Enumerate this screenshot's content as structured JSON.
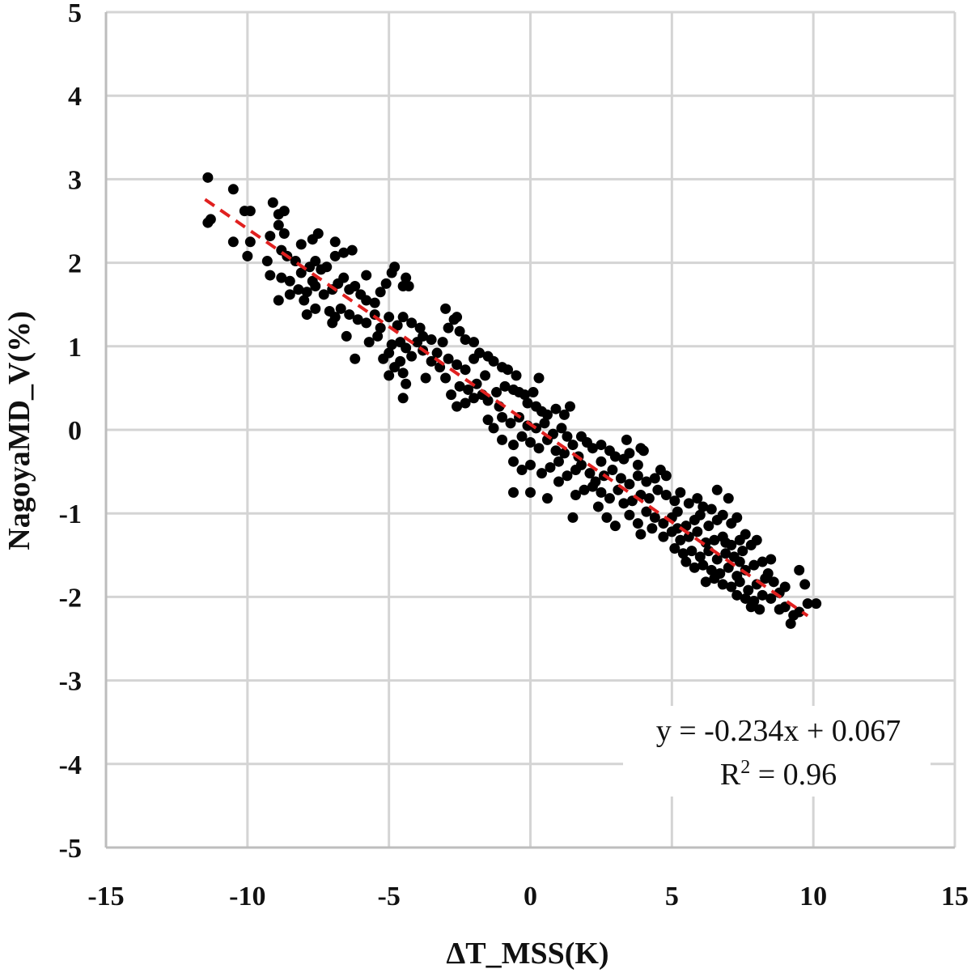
{
  "chart_data": {
    "type": "scatter",
    "title": "",
    "xlabel": "ΔT_MSS(K)",
    "ylabel": "NagoyaMD_V(%)",
    "xlim": [
      -15,
      15
    ],
    "ylim": [
      -5,
      5
    ],
    "x_ticks": [
      "-15",
      "-10",
      "-5",
      "0",
      "5",
      "10",
      "15"
    ],
    "y_ticks": [
      "5",
      "4",
      "3",
      "2",
      "1",
      "0",
      "-1",
      "-2",
      "-3",
      "-4",
      "-5"
    ],
    "grid": true,
    "marker_color": "#000000",
    "trendline": {
      "style": "dashed",
      "color": "#e0201f",
      "slope": -0.234,
      "intercept": 0.067,
      "x_range": [
        -11.5,
        9.8
      ]
    },
    "annotation": {
      "equation": "y = -0.234x + 0.067",
      "r2_prefix": "R",
      "r2_sup": "2",
      "r2_suffix": " = 0.96"
    },
    "points": [
      [
        -11.4,
        3.02
      ],
      [
        -11.3,
        2.52
      ],
      [
        -11.4,
        2.48
      ],
      [
        -10.5,
        2.88
      ],
      [
        -10.1,
        2.62
      ],
      [
        -9.9,
        2.62
      ],
      [
        -10.5,
        2.25
      ],
      [
        -10.0,
        2.08
      ],
      [
        -9.9,
        2.25
      ],
      [
        -9.1,
        2.72
      ],
      [
        -8.9,
        2.58
      ],
      [
        -8.7,
        2.62
      ],
      [
        -8.9,
        2.45
      ],
      [
        -8.7,
        2.35
      ],
      [
        -9.2,
        2.32
      ],
      [
        -8.8,
        2.15
      ],
      [
        -9.3,
        2.02
      ],
      [
        -8.6,
        2.08
      ],
      [
        -8.3,
        2.02
      ],
      [
        -8.1,
        2.22
      ],
      [
        -7.5,
        2.35
      ],
      [
        -7.7,
        2.28
      ],
      [
        -9.2,
        1.85
      ],
      [
        -8.8,
        1.82
      ],
      [
        -8.5,
        1.78
      ],
      [
        -8.1,
        1.88
      ],
      [
        -7.8,
        1.95
      ],
      [
        -7.6,
        2.02
      ],
      [
        -7.4,
        1.92
      ],
      [
        -7.2,
        1.95
      ],
      [
        -6.9,
        2.08
      ],
      [
        -6.6,
        2.12
      ],
      [
        -6.3,
        2.15
      ],
      [
        -6.6,
        1.82
      ],
      [
        -7.9,
        1.65
      ],
      [
        -7.6,
        1.72
      ],
      [
        -7.3,
        1.62
      ],
      [
        -7.0,
        1.68
      ],
      [
        -6.8,
        1.75
      ],
      [
        -6.4,
        1.68
      ],
      [
        -6.2,
        1.72
      ],
      [
        -6.0,
        1.62
      ],
      [
        -5.8,
        1.55
      ],
      [
        -5.5,
        1.52
      ],
      [
        -5.3,
        1.65
      ],
      [
        -5.1,
        1.75
      ],
      [
        -4.9,
        1.88
      ],
      [
        -4.8,
        1.95
      ],
      [
        -4.5,
        1.72
      ],
      [
        -4.3,
        1.72
      ],
      [
        -4.4,
        1.82
      ],
      [
        -8.9,
        1.55
      ],
      [
        -8.5,
        1.62
      ],
      [
        -8.0,
        1.55
      ],
      [
        -7.9,
        1.38
      ],
      [
        -7.6,
        1.45
      ],
      [
        -7.1,
        1.42
      ],
      [
        -6.9,
        1.35
      ],
      [
        -6.7,
        1.45
      ],
      [
        -6.4,
        1.38
      ],
      [
        -6.1,
        1.32
      ],
      [
        -5.8,
        1.28
      ],
      [
        -5.5,
        1.38
      ],
      [
        -5.3,
        1.22
      ],
      [
        -5.0,
        1.35
      ],
      [
        -4.7,
        1.25
      ],
      [
        -4.5,
        1.35
      ],
      [
        -4.2,
        1.28
      ],
      [
        -3.9,
        1.22
      ],
      [
        -3.8,
        1.12
      ],
      [
        -4.0,
        1.05
      ],
      [
        -4.4,
        0.98
      ],
      [
        -4.6,
        1.05
      ],
      [
        -4.9,
        1.02
      ],
      [
        -5.0,
        0.92
      ],
      [
        -5.2,
        0.85
      ],
      [
        -4.8,
        0.75
      ],
      [
        -4.5,
        0.68
      ],
      [
        -4.6,
        0.82
      ],
      [
        -4.2,
        0.88
      ],
      [
        -4.4,
        0.55
      ],
      [
        -5.0,
        0.65
      ],
      [
        -4.5,
        0.38
      ],
      [
        -3.8,
        0.95
      ],
      [
        -3.5,
        1.08
      ],
      [
        -3.3,
        0.92
      ],
      [
        -3.1,
        1.05
      ],
      [
        -2.9,
        1.22
      ],
      [
        -2.7,
        1.32
      ],
      [
        -2.6,
        1.35
      ],
      [
        -2.5,
        1.18
      ],
      [
        -2.3,
        1.08
      ],
      [
        -2.9,
        0.85
      ],
      [
        -3.2,
        0.75
      ],
      [
        -3.0,
        0.62
      ],
      [
        -2.6,
        0.78
      ],
      [
        -2.3,
        0.72
      ],
      [
        -2.0,
        0.85
      ],
      [
        -1.8,
        0.92
      ],
      [
        -1.5,
        0.88
      ],
      [
        -1.3,
        0.82
      ],
      [
        -1.0,
        0.75
      ],
      [
        -0.8,
        0.72
      ],
      [
        -1.6,
        0.65
      ],
      [
        -1.9,
        0.55
      ],
      [
        -2.2,
        0.48
      ],
      [
        -2.5,
        0.52
      ],
      [
        -2.8,
        0.42
      ],
      [
        -2.6,
        0.28
      ],
      [
        -2.3,
        0.32
      ],
      [
        -2.0,
        0.38
      ],
      [
        -1.7,
        0.42
      ],
      [
        -1.5,
        0.35
      ],
      [
        -1.2,
        0.45
      ],
      [
        -0.9,
        0.52
      ],
      [
        -0.6,
        0.48
      ],
      [
        -0.4,
        0.45
      ],
      [
        -0.2,
        0.42
      ],
      [
        0.1,
        0.45
      ],
      [
        0.3,
        0.62
      ],
      [
        -0.1,
        0.32
      ],
      [
        0.2,
        0.28
      ],
      [
        0.4,
        0.22
      ],
      [
        0.6,
        0.18
      ],
      [
        0.9,
        0.25
      ],
      [
        1.2,
        0.18
      ],
      [
        1.4,
        0.28
      ],
      [
        -1.0,
        0.15
      ],
      [
        -0.7,
        0.08
      ],
      [
        -0.4,
        0.15
      ],
      [
        -0.1,
        0.05
      ],
      [
        0.2,
        0.02
      ],
      [
        0.5,
        0.08
      ],
      [
        0.8,
        -0.05
      ],
      [
        1.1,
        0.02
      ],
      [
        1.3,
        -0.08
      ],
      [
        -1.3,
        0.02
      ],
      [
        -1.0,
        -0.12
      ],
      [
        -0.6,
        -0.18
      ],
      [
        -0.3,
        -0.08
      ],
      [
        0.0,
        -0.15
      ],
      [
        0.3,
        -0.22
      ],
      [
        0.6,
        -0.12
      ],
      [
        0.9,
        -0.25
      ],
      [
        1.2,
        -0.28
      ],
      [
        1.5,
        -0.18
      ],
      [
        1.8,
        -0.08
      ],
      [
        2.0,
        -0.15
      ],
      [
        2.2,
        -0.22
      ],
      [
        2.5,
        -0.18
      ],
      [
        2.8,
        -0.25
      ],
      [
        3.0,
        -0.32
      ],
      [
        3.3,
        -0.35
      ],
      [
        3.5,
        -0.28
      ],
      [
        3.8,
        -0.42
      ],
      [
        3.9,
        -0.22
      ],
      [
        -0.6,
        -0.38
      ],
      [
        -0.3,
        -0.48
      ],
      [
        0.0,
        -0.42
      ],
      [
        0.4,
        -0.52
      ],
      [
        0.7,
        -0.45
      ],
      [
        1.0,
        -0.38
      ],
      [
        1.3,
        -0.55
      ],
      [
        1.6,
        -0.48
      ],
      [
        1.8,
        -0.42
      ],
      [
        2.1,
        -0.52
      ],
      [
        2.3,
        -0.62
      ],
      [
        2.6,
        -0.55
      ],
      [
        2.9,
        -0.48
      ],
      [
        3.2,
        -0.58
      ],
      [
        3.5,
        -0.65
      ],
      [
        3.8,
        -0.55
      ],
      [
        4.1,
        -0.62
      ],
      [
        4.4,
        -0.58
      ],
      [
        4.6,
        -0.48
      ],
      [
        4.8,
        -0.55
      ],
      [
        -0.6,
        -0.75
      ],
      [
        0.0,
        -0.75
      ],
      [
        0.6,
        -0.82
      ],
      [
        1.6,
        -0.78
      ],
      [
        1.9,
        -0.72
      ],
      [
        2.2,
        -0.68
      ],
      [
        2.5,
        -0.75
      ],
      [
        2.8,
        -0.82
      ],
      [
        3.1,
        -0.72
      ],
      [
        3.3,
        -0.88
      ],
      [
        3.6,
        -0.85
      ],
      [
        3.9,
        -0.78
      ],
      [
        4.2,
        -0.82
      ],
      [
        4.5,
        -0.72
      ],
      [
        4.8,
        -0.78
      ],
      [
        5.1,
        -0.85
      ],
      [
        5.3,
        -0.75
      ],
      [
        5.6,
        -0.88
      ],
      [
        5.9,
        -0.82
      ],
      [
        6.1,
        -0.92
      ],
      [
        6.4,
        -0.95
      ],
      [
        6.6,
        -0.72
      ],
      [
        7.0,
        -0.82
      ],
      [
        3.5,
        -1.02
      ],
      [
        3.8,
        -1.12
      ],
      [
        4.1,
        -0.98
      ],
      [
        4.4,
        -1.05
      ],
      [
        4.7,
        -1.12
      ],
      [
        5.0,
        -1.05
      ],
      [
        5.2,
        -0.98
      ],
      [
        5.5,
        -1.15
      ],
      [
        5.8,
        -1.08
      ],
      [
        6.0,
        -1.02
      ],
      [
        6.3,
        -1.15
      ],
      [
        6.6,
        -1.08
      ],
      [
        6.8,
        -1.02
      ],
      [
        7.1,
        -1.12
      ],
      [
        7.3,
        -1.05
      ],
      [
        3.9,
        -1.25
      ],
      [
        4.3,
        -1.18
      ],
      [
        4.7,
        -1.28
      ],
      [
        5.0,
        -1.22
      ],
      [
        5.3,
        -1.32
      ],
      [
        5.6,
        -1.28
      ],
      [
        5.9,
        -1.22
      ],
      [
        6.2,
        -1.35
      ],
      [
        6.5,
        -1.32
      ],
      [
        6.8,
        -1.28
      ],
      [
        7.1,
        -1.38
      ],
      [
        7.4,
        -1.32
      ],
      [
        7.6,
        -1.25
      ],
      [
        5.1,
        -1.42
      ],
      [
        5.4,
        -1.48
      ],
      [
        5.7,
        -1.45
      ],
      [
        6.0,
        -1.52
      ],
      [
        6.3,
        -1.45
      ],
      [
        6.6,
        -1.55
      ],
      [
        6.9,
        -1.48
      ],
      [
        7.2,
        -1.52
      ],
      [
        7.5,
        -1.45
      ],
      [
        7.8,
        -1.38
      ],
      [
        8.0,
        -1.32
      ],
      [
        5.5,
        -1.58
      ],
      [
        5.8,
        -1.65
      ],
      [
        6.1,
        -1.62
      ],
      [
        6.4,
        -1.68
      ],
      [
        6.7,
        -1.72
      ],
      [
        7.0,
        -1.65
      ],
      [
        7.3,
        -1.75
      ],
      [
        7.6,
        -1.68
      ],
      [
        7.9,
        -1.62
      ],
      [
        8.2,
        -1.58
      ],
      [
        8.5,
        -1.55
      ],
      [
        6.2,
        -1.82
      ],
      [
        6.5,
        -1.78
      ],
      [
        6.8,
        -1.85
      ],
      [
        7.1,
        -1.88
      ],
      [
        7.4,
        -1.82
      ],
      [
        7.7,
        -1.92
      ],
      [
        8.0,
        -1.85
      ],
      [
        8.3,
        -1.78
      ],
      [
        8.6,
        -1.82
      ],
      [
        7.3,
        -1.98
      ],
      [
        7.6,
        -2.02
      ],
      [
        7.9,
        -2.05
      ],
      [
        8.2,
        -1.98
      ],
      [
        8.5,
        -2.02
      ],
      [
        7.8,
        -2.12
      ],
      [
        8.1,
        -2.15
      ],
      [
        8.8,
        -1.95
      ],
      [
        9.0,
        -2.12
      ],
      [
        9.3,
        -2.22
      ],
      [
        9.5,
        -2.18
      ],
      [
        9.8,
        -2.08
      ],
      [
        10.1,
        -2.08
      ],
      [
        9.7,
        -1.85
      ],
      [
        9.5,
        -1.68
      ],
      [
        9.2,
        -2.32
      ],
      [
        8.8,
        -2.15
      ],
      [
        -6.2,
        0.85
      ],
      [
        -5.7,
        1.05
      ],
      [
        -5.4,
        1.12
      ],
      [
        -6.5,
        1.12
      ],
      [
        -7.0,
        1.28
      ],
      [
        -7.7,
        1.78
      ],
      [
        -8.2,
        1.68
      ],
      [
        -3.5,
        0.82
      ],
      [
        -3.7,
        0.62
      ],
      [
        -1.5,
        0.12
      ],
      [
        -1.1,
        0.28
      ],
      [
        1.0,
        -0.62
      ],
      [
        1.7,
        -0.32
      ],
      [
        2.4,
        -0.92
      ],
      [
        2.7,
        -1.05
      ],
      [
        3.0,
        -1.15
      ],
      [
        4.0,
        -0.25
      ],
      [
        8.4,
        -1.72
      ],
      [
        9.0,
        -1.88
      ],
      [
        -2.0,
        1.05
      ],
      [
        -0.5,
        0.65
      ],
      [
        -3.0,
        1.45
      ],
      [
        -5.8,
        1.85
      ],
      [
        -6.9,
        2.25
      ],
      [
        1.5,
        -1.05
      ],
      [
        2.5,
        -0.38
      ],
      [
        3.4,
        -0.12
      ],
      [
        6.9,
        -1.35
      ],
      [
        7.4,
        -1.58
      ],
      [
        5.2,
        -1.18
      ]
    ]
  }
}
